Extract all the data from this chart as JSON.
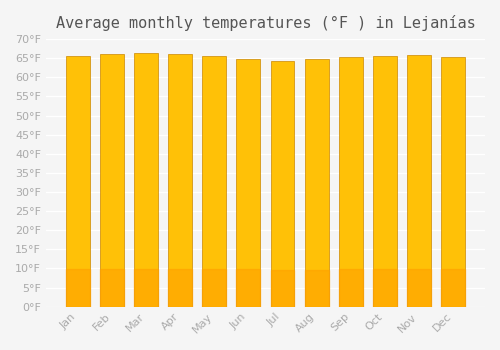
{
  "title": "Average monthly temperatures (°F ) in Lejanías",
  "months": [
    "Jan",
    "Feb",
    "Mar",
    "Apr",
    "May",
    "Jun",
    "Jul",
    "Aug",
    "Sep",
    "Oct",
    "Nov",
    "Dec"
  ],
  "values": [
    65.5,
    66.2,
    66.3,
    66.1,
    65.5,
    64.9,
    64.2,
    64.8,
    65.3,
    65.7,
    65.8,
    65.3
  ],
  "bar_color_top": "#FFC107",
  "bar_color_bottom": "#FFA000",
  "bar_edge_color": "#CC8800",
  "background_color": "#f5f5f5",
  "grid_color": "#ffffff",
  "ylim": [
    0,
    70
  ],
  "yticks": [
    0,
    5,
    10,
    15,
    20,
    25,
    30,
    35,
    40,
    45,
    50,
    55,
    60,
    65,
    70
  ],
  "ytick_labels": [
    "0°F",
    "5°F",
    "10°F",
    "15°F",
    "20°F",
    "25°F",
    "30°F",
    "35°F",
    "40°F",
    "45°F",
    "50°F",
    "55°F",
    "60°F",
    "65°F",
    "70°F"
  ],
  "title_fontsize": 11,
  "tick_fontsize": 8,
  "tick_color": "#aaaaaa"
}
